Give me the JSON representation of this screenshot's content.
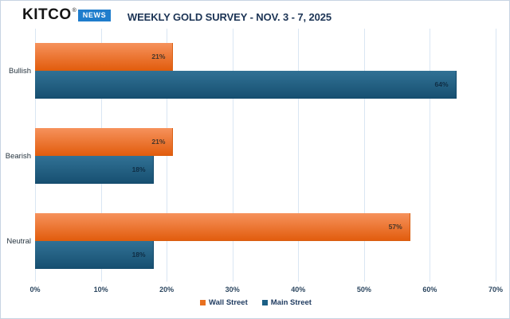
{
  "header": {
    "logo": {
      "brand": "KITCO",
      "registered": "®",
      "badge": "NEWS"
    },
    "title": "WEEKLY GOLD SURVEY - NOV. 3 - 7, 2025"
  },
  "chart_data": {
    "type": "bar",
    "orientation": "horizontal",
    "title": "WEEKLY GOLD SURVEY - NOV. 3 - 7, 2025",
    "categories": [
      "Bullish",
      "Bearish",
      "Neutral"
    ],
    "series": [
      {
        "name": "Wall Street",
        "color": "#e8701f",
        "gradient_top": "#f6925c",
        "gradient_bottom": "#e25d0e",
        "border": "#d95f12",
        "label_color": "#46362a",
        "values": [
          21,
          21,
          57
        ]
      },
      {
        "name": "Main Street",
        "color": "#1b5f85",
        "gradient_top": "#317195",
        "gradient_bottom": "#175071",
        "border": "#11486a",
        "label_color": "#0f2d44",
        "values": [
          64,
          18,
          18
        ]
      }
    ],
    "value_suffix": "%",
    "value_labels": [
      [
        "21%",
        "21%",
        "57%"
      ],
      [
        "64%",
        "18%",
        "18%"
      ]
    ],
    "xlabel": "",
    "ylabel": "",
    "xlim": [
      0,
      70
    ],
    "x_ticks": [
      "0%",
      "10%",
      "20%",
      "30%",
      "40%",
      "50%",
      "60%",
      "70%"
    ],
    "grid": "vertical",
    "gridline_color": "#d9e6f3",
    "legend_position": "bottom"
  }
}
